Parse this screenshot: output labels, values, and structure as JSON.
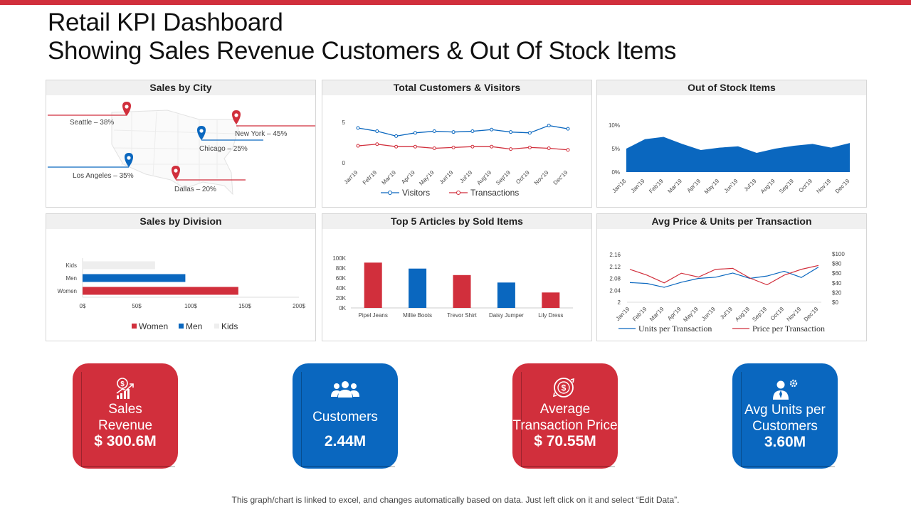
{
  "header": {
    "title_line1": "Retail KPI Dashboard",
    "title_line2": "Showing Sales Revenue Customers & Out Of Stock Items",
    "accent_color": "#d12f3c",
    "blue_color": "#0a67bf"
  },
  "panels": {
    "city": "Sales by City",
    "customers": "Total Customers  & Visitors",
    "oos": "Out of Stock Items",
    "division": "Sales by Division",
    "top5": "Top 5 Articles by Sold Items",
    "avg": "Avg Price & Units per Transaction"
  },
  "chart_data": [
    {
      "type": "map",
      "title": "Sales by City",
      "cities": [
        {
          "label": "Seattle – 38%",
          "name": "Seattle",
          "value": 38,
          "color": "red"
        },
        {
          "label": "New York – 45%",
          "name": "New York",
          "value": 45,
          "color": "red"
        },
        {
          "label": "Chicago – 25%",
          "name": "Chicago",
          "value": 25,
          "color": "blue"
        },
        {
          "label": "Los Angeles – 35%",
          "name": "Los Angeles",
          "value": 35,
          "color": "blue"
        },
        {
          "label": "Dallas – 20%",
          "name": "Dallas",
          "value": 20,
          "color": "red"
        }
      ]
    },
    {
      "type": "line",
      "title": "Total Customers  & Visitors",
      "categories": [
        "Jan'19",
        "Feb'19",
        "Mar'19",
        "Apr'19",
        "May'19",
        "Jun'19",
        "Jul'19",
        "Aug'19",
        "Sep'19",
        "Oct'19",
        "Nov'19",
        "Dec'19"
      ],
      "series": [
        {
          "name": "Visitors",
          "color": "#0a67bf",
          "values": [
            4.3,
            3.9,
            3.3,
            3.7,
            3.9,
            3.8,
            3.9,
            4.1,
            3.8,
            3.7,
            4.6,
            4.2
          ]
        },
        {
          "name": "Transactions",
          "color": "#d12f3c",
          "values": [
            2.1,
            2.3,
            2.0,
            2.0,
            1.8,
            1.9,
            2.0,
            2.0,
            1.7,
            1.9,
            1.8,
            1.6
          ]
        }
      ],
      "yticks": [
        "5",
        "0"
      ],
      "ylim": [
        0,
        5
      ]
    },
    {
      "type": "area",
      "title": "Out of Stock Items",
      "categories": [
        "Jan'18",
        "Jan'19",
        "Feb'19",
        "Mar'19",
        "Apr'19",
        "May'19",
        "Jun'19",
        "Jul'19",
        "Aug'19",
        "Sep'19",
        "Oct'19",
        "Nov'19",
        "Dec'19"
      ],
      "values": [
        5.0,
        7.0,
        7.5,
        6.0,
        4.7,
        5.2,
        5.5,
        4.1,
        5.0,
        5.6,
        6.0,
        5.2,
        6.2
      ],
      "yticks": [
        "10%",
        "5%",
        "0%"
      ],
      "ylim": [
        0,
        10
      ],
      "color": "#0a67bf"
    },
    {
      "type": "bar",
      "orientation": "horizontal",
      "title": "Sales by Division",
      "categories": [
        "Kids",
        "Men",
        "Women"
      ],
      "values": [
        67,
        95,
        144
      ],
      "colors": [
        "#eeeeee",
        "#0a67bf",
        "#d12f3c"
      ],
      "xticks": [
        "0$",
        "50$",
        "100$",
        "150$",
        "200$"
      ],
      "xlim": [
        0,
        200
      ],
      "legend": [
        "Women",
        "Men",
        "Kids"
      ]
    },
    {
      "type": "bar",
      "title": "Top 5 Articles by Sold Items",
      "categories": [
        "Pipel Jeans",
        "Millie Boots",
        "Trevor Shirt",
        "Daisy Jumper",
        "Lily Dress"
      ],
      "values": [
        91000,
        79000,
        66000,
        51000,
        31000
      ],
      "colors": [
        "#d12f3c",
        "#0a67bf",
        "#d12f3c",
        "#0a67bf",
        "#d12f3c"
      ],
      "yticks": [
        "100K",
        "80K",
        "60K",
        "40K",
        "20K",
        "0K"
      ],
      "ylim": [
        0,
        100000
      ]
    },
    {
      "type": "line",
      "title": "Avg Price & Units per Transaction",
      "categories": [
        "Jan'19",
        "Feb'19",
        "Mar'19",
        "Apr'19",
        "May'19",
        "Jun'19",
        "Jul'19",
        "Aug'19",
        "Sep'19",
        "Oct'19",
        "Nov'19",
        "Dec'19"
      ],
      "series": [
        {
          "name": "Units per Transaction",
          "color": "#0a67bf",
          "axis": "left",
          "values": [
            2.066,
            2.063,
            2.05,
            2.067,
            2.08,
            2.084,
            2.098,
            2.08,
            2.088,
            2.104,
            2.083,
            2.118
          ]
        },
        {
          "name": "Price per Transaction",
          "color": "#d12f3c",
          "axis": "right",
          "values": [
            68,
            56,
            40,
            60,
            52,
            68,
            70,
            50,
            36,
            56,
            68,
            76
          ]
        }
      ],
      "yticks_left": [
        "2.16",
        "2.12",
        "2.08",
        "2.04",
        "2"
      ],
      "yticks_right": [
        "$100",
        "$80",
        "$60",
        "$40",
        "$20",
        "$0"
      ],
      "ylim_left": [
        2,
        2.16
      ],
      "ylim_right": [
        0,
        100
      ]
    }
  ],
  "cards": [
    {
      "label_line1": "Sales",
      "label_line2": "Revenue",
      "value": "$ 300.6M",
      "icon": "money-chart-icon"
    },
    {
      "label": "Customers",
      "value": "2.44M",
      "icon": "people-icon"
    },
    {
      "label_line1": "Average",
      "label_line2": "Transaction Price",
      "value": "$ 70.55M",
      "icon": "dollar-cycle-icon"
    },
    {
      "label_line1": "Avg Units per",
      "label_line2": "Customers",
      "value": "3.60M",
      "icon": "person-gear-icon"
    }
  ],
  "footnote": "This graph/chart is linked to excel,  and changes automatically based on data. Just left click on it and select “Edit Data”."
}
